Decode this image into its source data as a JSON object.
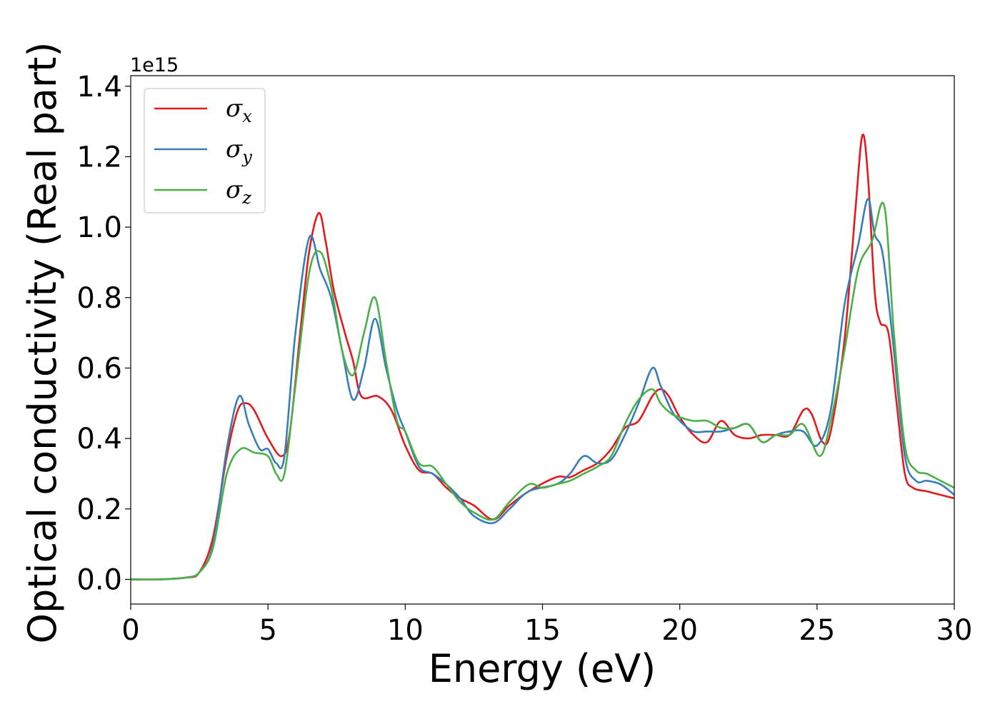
{
  "chart_data": {
    "type": "line",
    "title": "",
    "xlabel": "Energy (eV)",
    "ylabel": "Optical conductivity (Real part)",
    "y_offset_label": "1e15",
    "xlim": [
      0,
      30
    ],
    "ylim": [
      -0.07,
      1.43
    ],
    "x_ticks": [
      0,
      5,
      10,
      15,
      20,
      25,
      30
    ],
    "x_tick_labels": [
      "0",
      "5",
      "10",
      "15",
      "20",
      "25",
      "30"
    ],
    "y_ticks": [
      0.0,
      0.2,
      0.4,
      0.6,
      0.8,
      1.0,
      1.2,
      1.4
    ],
    "y_tick_labels": [
      "0.0",
      "0.2",
      "0.4",
      "0.6",
      "0.8",
      "1.0",
      "1.2",
      "1.4"
    ],
    "grid": false,
    "legend_position": "top-left",
    "series": [
      {
        "name": "σx",
        "symbol": "σ",
        "subscript": "x",
        "color": "#e41a1c",
        "points": [
          [
            0,
            0
          ],
          [
            1,
            0
          ],
          [
            2,
            0.005
          ],
          [
            2.5,
            0.02
          ],
          [
            3,
            0.12
          ],
          [
            3.5,
            0.35
          ],
          [
            3.9,
            0.48
          ],
          [
            4.2,
            0.5
          ],
          [
            4.5,
            0.48
          ],
          [
            5,
            0.4
          ],
          [
            5.5,
            0.35
          ],
          [
            5.8,
            0.42
          ],
          [
            6.2,
            0.72
          ],
          [
            6.5,
            0.93
          ],
          [
            6.85,
            1.04
          ],
          [
            7.1,
            0.96
          ],
          [
            7.4,
            0.82
          ],
          [
            7.8,
            0.7
          ],
          [
            8.1,
            0.62
          ],
          [
            8.4,
            0.52
          ],
          [
            9,
            0.52
          ],
          [
            9.5,
            0.48
          ],
          [
            10,
            0.38
          ],
          [
            10.5,
            0.31
          ],
          [
            11,
            0.3
          ],
          [
            11.5,
            0.26
          ],
          [
            12,
            0.23
          ],
          [
            12.5,
            0.21
          ],
          [
            13.2,
            0.17
          ],
          [
            13.8,
            0.21
          ],
          [
            14.5,
            0.25
          ],
          [
            15.5,
            0.29
          ],
          [
            16,
            0.29
          ],
          [
            16.5,
            0.31
          ],
          [
            17,
            0.33
          ],
          [
            17.5,
            0.37
          ],
          [
            18,
            0.43
          ],
          [
            18.5,
            0.45
          ],
          [
            19,
            0.52
          ],
          [
            19.3,
            0.54
          ],
          [
            19.6,
            0.52
          ],
          [
            20,
            0.46
          ],
          [
            20.5,
            0.41
          ],
          [
            21,
            0.39
          ],
          [
            21.5,
            0.45
          ],
          [
            22,
            0.41
          ],
          [
            22.5,
            0.4
          ],
          [
            23,
            0.41
          ],
          [
            23.5,
            0.41
          ],
          [
            24,
            0.41
          ],
          [
            24.5,
            0.48
          ],
          [
            24.8,
            0.47
          ],
          [
            25.2,
            0.39
          ],
          [
            25.5,
            0.42
          ],
          [
            26,
            0.68
          ],
          [
            26.4,
            1.05
          ],
          [
            26.65,
            1.26
          ],
          [
            26.85,
            1.15
          ],
          [
            27.1,
            0.82
          ],
          [
            27.3,
            0.73
          ],
          [
            27.6,
            0.7
          ],
          [
            27.9,
            0.5
          ],
          [
            28.2,
            0.3
          ],
          [
            28.5,
            0.26
          ],
          [
            29,
            0.25
          ],
          [
            29.5,
            0.24
          ],
          [
            30,
            0.23
          ]
        ]
      },
      {
        "name": "σy",
        "symbol": "σ",
        "subscript": "y",
        "color": "#377eb8",
        "points": [
          [
            0,
            0
          ],
          [
            1,
            0
          ],
          [
            2,
            0.005
          ],
          [
            2.5,
            0.02
          ],
          [
            3,
            0.1
          ],
          [
            3.5,
            0.37
          ],
          [
            3.95,
            0.52
          ],
          [
            4.3,
            0.44
          ],
          [
            4.7,
            0.37
          ],
          [
            5,
            0.37
          ],
          [
            5.3,
            0.33
          ],
          [
            5.6,
            0.35
          ],
          [
            6,
            0.7
          ],
          [
            6.5,
            0.97
          ],
          [
            6.9,
            0.88
          ],
          [
            7.3,
            0.8
          ],
          [
            7.7,
            0.65
          ],
          [
            8.1,
            0.51
          ],
          [
            8.5,
            0.6
          ],
          [
            8.9,
            0.74
          ],
          [
            9.3,
            0.6
          ],
          [
            9.7,
            0.48
          ],
          [
            10,
            0.42
          ],
          [
            10.5,
            0.32
          ],
          [
            11,
            0.3
          ],
          [
            11.5,
            0.27
          ],
          [
            12,
            0.23
          ],
          [
            12.5,
            0.18
          ],
          [
            13.2,
            0.16
          ],
          [
            13.8,
            0.2
          ],
          [
            14.5,
            0.25
          ],
          [
            15.5,
            0.27
          ],
          [
            16,
            0.3
          ],
          [
            16.5,
            0.35
          ],
          [
            17,
            0.33
          ],
          [
            17.5,
            0.34
          ],
          [
            18,
            0.41
          ],
          [
            18.5,
            0.5
          ],
          [
            19,
            0.6
          ],
          [
            19.3,
            0.55
          ],
          [
            19.7,
            0.48
          ],
          [
            20,
            0.45
          ],
          [
            20.5,
            0.42
          ],
          [
            21,
            0.42
          ],
          [
            21.5,
            0.42
          ],
          [
            22,
            0.43
          ],
          [
            22.5,
            0.44
          ],
          [
            23,
            0.39
          ],
          [
            23.5,
            0.41
          ],
          [
            24,
            0.42
          ],
          [
            24.5,
            0.42
          ],
          [
            25,
            0.38
          ],
          [
            25.5,
            0.48
          ],
          [
            26,
            0.78
          ],
          [
            26.5,
            0.95
          ],
          [
            26.85,
            1.08
          ],
          [
            27.1,
            0.98
          ],
          [
            27.4,
            0.92
          ],
          [
            27.8,
            0.65
          ],
          [
            28.2,
            0.35
          ],
          [
            28.6,
            0.28
          ],
          [
            29,
            0.28
          ],
          [
            29.5,
            0.27
          ],
          [
            30,
            0.24
          ]
        ]
      },
      {
        "name": "σz",
        "symbol": "σ",
        "subscript": "z",
        "color": "#4daf4a",
        "points": [
          [
            0,
            0
          ],
          [
            1,
            0
          ],
          [
            2,
            0.005
          ],
          [
            2.5,
            0.02
          ],
          [
            3,
            0.09
          ],
          [
            3.5,
            0.3
          ],
          [
            4,
            0.37
          ],
          [
            4.5,
            0.36
          ],
          [
            5,
            0.35
          ],
          [
            5.3,
            0.3
          ],
          [
            5.6,
            0.3
          ],
          [
            6,
            0.55
          ],
          [
            6.5,
            0.87
          ],
          [
            6.9,
            0.93
          ],
          [
            7.3,
            0.83
          ],
          [
            7.7,
            0.65
          ],
          [
            8.1,
            0.58
          ],
          [
            8.5,
            0.7
          ],
          [
            8.9,
            0.8
          ],
          [
            9.3,
            0.62
          ],
          [
            9.7,
            0.45
          ],
          [
            10,
            0.42
          ],
          [
            10.5,
            0.33
          ],
          [
            11,
            0.32
          ],
          [
            11.5,
            0.27
          ],
          [
            12,
            0.22
          ],
          [
            12.5,
            0.19
          ],
          [
            13.2,
            0.17
          ],
          [
            13.8,
            0.22
          ],
          [
            14.5,
            0.27
          ],
          [
            15,
            0.26
          ],
          [
            15.5,
            0.27
          ],
          [
            16,
            0.28
          ],
          [
            16.5,
            0.3
          ],
          [
            17,
            0.32
          ],
          [
            17.5,
            0.35
          ],
          [
            18,
            0.44
          ],
          [
            18.5,
            0.51
          ],
          [
            19,
            0.54
          ],
          [
            19.3,
            0.5
          ],
          [
            19.7,
            0.47
          ],
          [
            20,
            0.46
          ],
          [
            20.5,
            0.45
          ],
          [
            21,
            0.45
          ],
          [
            21.5,
            0.43
          ],
          [
            22,
            0.43
          ],
          [
            22.5,
            0.44
          ],
          [
            23,
            0.39
          ],
          [
            23.5,
            0.41
          ],
          [
            24,
            0.41
          ],
          [
            24.5,
            0.44
          ],
          [
            25.1,
            0.35
          ],
          [
            25.5,
            0.45
          ],
          [
            26,
            0.65
          ],
          [
            26.5,
            0.88
          ],
          [
            27,
            0.96
          ],
          [
            27.45,
            1.06
          ],
          [
            27.8,
            0.7
          ],
          [
            28.2,
            0.38
          ],
          [
            28.6,
            0.31
          ],
          [
            29,
            0.3
          ],
          [
            29.5,
            0.28
          ],
          [
            30,
            0.26
          ]
        ]
      }
    ]
  }
}
